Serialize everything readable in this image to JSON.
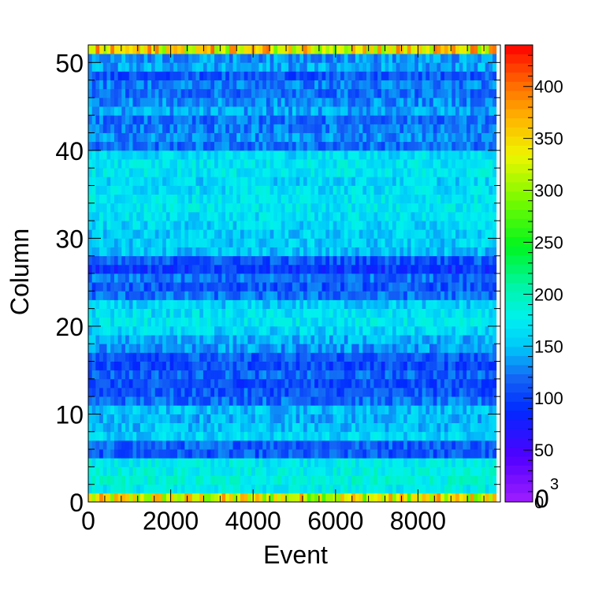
{
  "chart_data": {
    "type": "heatmap",
    "title": "",
    "xlabel": "Event",
    "ylabel": "Column",
    "x_range": [
      0,
      10000
    ],
    "y_range": [
      0,
      52
    ],
    "x_ticks": [
      "0",
      "2000",
      "4000",
      "6000",
      "8000"
    ],
    "x_tick_values": [
      0,
      2000,
      4000,
      6000,
      8000
    ],
    "y_ticks": [
      "0",
      "10",
      "20",
      "30",
      "40",
      "50"
    ],
    "y_tick_values": [
      0,
      10,
      20,
      30,
      40,
      50
    ],
    "colorbar": {
      "range": [
        0,
        440
      ],
      "ticks": [
        "0",
        "50",
        "100",
        "150",
        "200",
        "250",
        "300",
        "350",
        "400"
      ],
      "tick_values": [
        0,
        50,
        100,
        150,
        200,
        250,
        300,
        350,
        400
      ],
      "exponent_label": "0",
      "exponent_power": "3",
      "palette": "rainbow (violet to red)"
    },
    "column_mean_counts": [
      330,
      175,
      185,
      180,
      175,
      110,
      115,
      160,
      150,
      145,
      150,
      120,
      110,
      105,
      115,
      105,
      110,
      135,
      145,
      160,
      170,
      165,
      155,
      120,
      110,
      120,
      95,
      110,
      150,
      155,
      155,
      160,
      165,
      170,
      170,
      165,
      160,
      170,
      170,
      165,
      120,
      130,
      125,
      120,
      140,
      130,
      120,
      125,
      110,
      140,
      135,
      345
    ],
    "grid": false
  }
}
